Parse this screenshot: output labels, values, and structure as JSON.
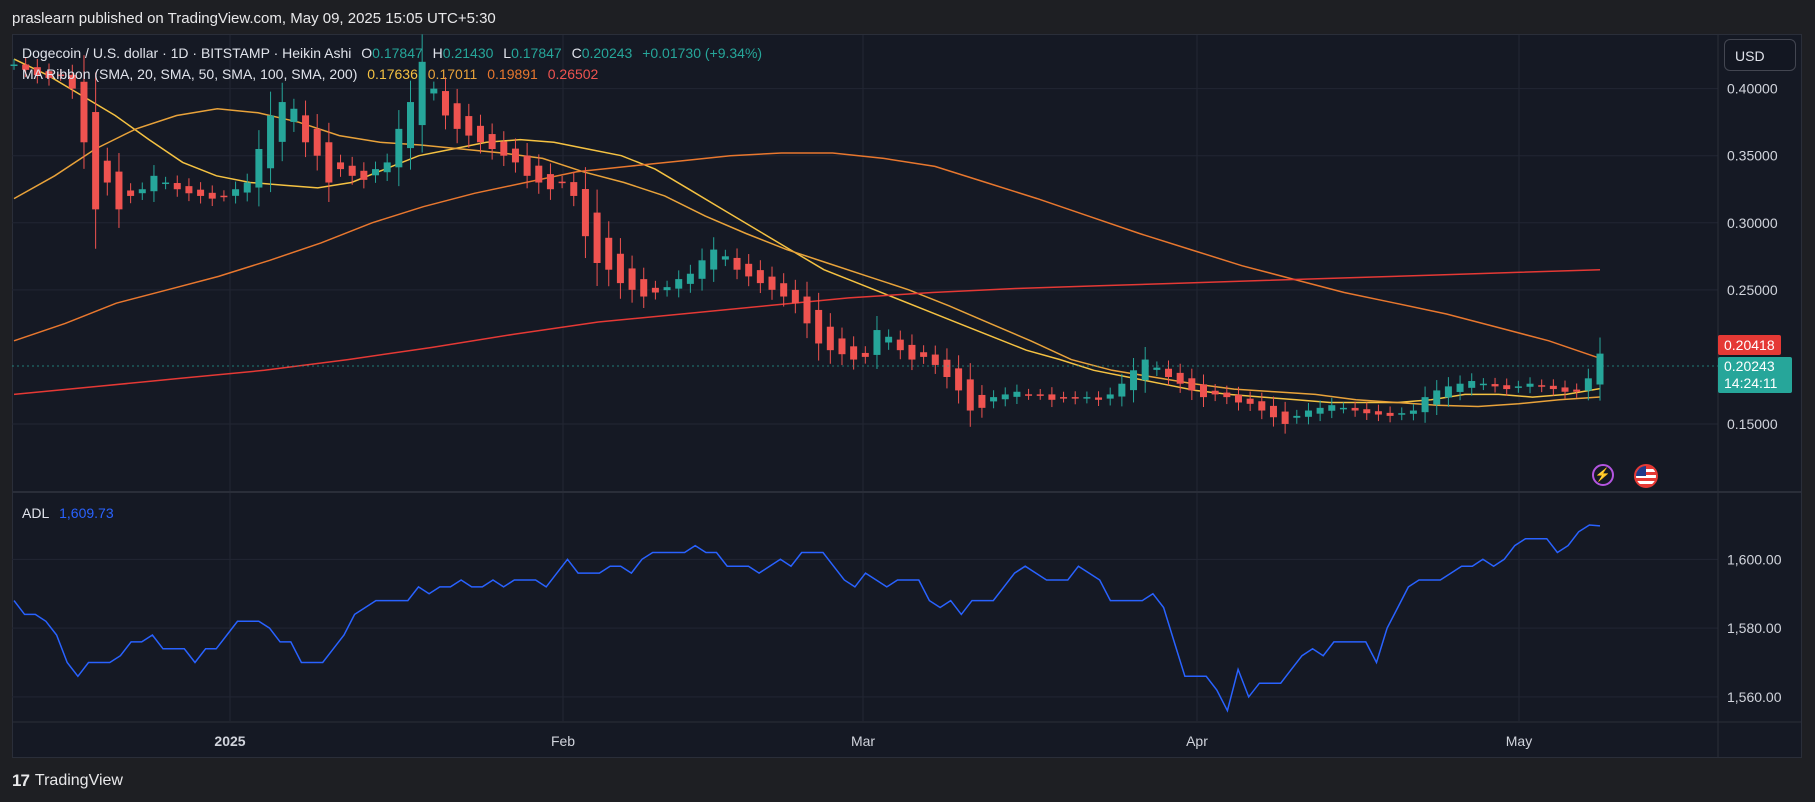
{
  "header": {
    "published": "praslearn published on TradingView.com, May 09, 2025 15:05 UTC+5:30"
  },
  "symbol": {
    "name": "Dogecoin / U.S. dollar · 1D · BITSTAMP · Heikin Ashi",
    "o_label": "O",
    "o": "0.17847",
    "h_label": "H",
    "h": "0.21430",
    "l_label": "L",
    "l": "0.17847",
    "c_label": "C",
    "c": "0.20243",
    "change": "+0.01730 (+9.34%)"
  },
  "ma_ribbon": {
    "label": "MA Ribbon (SMA, 20, SMA, 50, SMA, 100, SMA, 200)",
    "v20": "0.17636",
    "v50": "0.17011",
    "v100": "0.19891",
    "v200": "0.26502"
  },
  "currency_button": "USD",
  "price_badges": {
    "upper": "0.20418",
    "last": "0.20243",
    "countdown": "14:24:11"
  },
  "adl": {
    "label": "ADL",
    "value": "1,609.73"
  },
  "footer": {
    "brand": "TradingView",
    "logo_text": "17"
  },
  "colors": {
    "up": "#26a69a",
    "down": "#ef5350",
    "sma20": "#f5c242",
    "sma50": "#e8a23a",
    "sma100": "#e8772e",
    "sma200": "#e53935",
    "adl": "#2962ff",
    "bg": "#151924",
    "grid": "#222633"
  },
  "chart_data": [
    {
      "type": "line",
      "title": "Dogecoin / U.S. dollar · 1D · BITSTAMP · Heikin Ashi",
      "x_ticks": [
        "2025",
        "Feb",
        "Mar",
        "Apr",
        "May"
      ],
      "y_ticks": [
        "0.40000",
        "0.35000",
        "0.30000",
        "0.25000",
        "0.15000"
      ],
      "ylim": [
        0.1,
        0.44
      ],
      "candle_series": {
        "name": "Heikin Ashi",
        "close": [
          0.418,
          0.414,
          0.41,
          0.408,
          0.41,
          0.4,
          0.36,
          0.31,
          0.33,
          0.31,
          0.32,
          0.325,
          0.335,
          0.33,
          0.325,
          0.322,
          0.32,
          0.318,
          0.32,
          0.325,
          0.33,
          0.355,
          0.38,
          0.39,
          0.385,
          0.36,
          0.35,
          0.33,
          0.34,
          0.335,
          0.332,
          0.34,
          0.345,
          0.37,
          0.39,
          0.42,
          0.4,
          0.38,
          0.37,
          0.365,
          0.36,
          0.355,
          0.35,
          0.345,
          0.335,
          0.33,
          0.325,
          0.33,
          0.32,
          0.29,
          0.27,
          0.265,
          0.255,
          0.25,
          0.245,
          0.248,
          0.252,
          0.258,
          0.262,
          0.272,
          0.28,
          0.275,
          0.265,
          0.26,
          0.255,
          0.25,
          0.245,
          0.24,
          0.225,
          0.21,
          0.205,
          0.202,
          0.198,
          0.2,
          0.22,
          0.215,
          0.205,
          0.198,
          0.2,
          0.194,
          0.185,
          0.175,
          0.16,
          0.162,
          0.17,
          0.172,
          0.174,
          0.172,
          0.172,
          0.168,
          0.17,
          0.169,
          0.17,
          0.168,
          0.172,
          0.18,
          0.19,
          0.198,
          0.192,
          0.185,
          0.18,
          0.175,
          0.17,
          0.172,
          0.17,
          0.166,
          0.165,
          0.16,
          0.155,
          0.15,
          0.156,
          0.16,
          0.162,
          0.164,
          0.162,
          0.16,
          0.158,
          0.157,
          0.156,
          0.158,
          0.16,
          0.17,
          0.175,
          0.178,
          0.18,
          0.182,
          0.18,
          0.178,
          0.176,
          0.178,
          0.18,
          0.178,
          0.176,
          0.174,
          0.174,
          0.184,
          0.20243
        ]
      },
      "series": [
        {
          "name": "SMA 20",
          "values": [
            0.422,
            0.41,
            0.395,
            0.38,
            0.362,
            0.345,
            0.335,
            0.33,
            0.328,
            0.326,
            0.33,
            0.34,
            0.35,
            0.355,
            0.36,
            0.362,
            0.36,
            0.355,
            0.35,
            0.34,
            0.325,
            0.31,
            0.295,
            0.28,
            0.265,
            0.255,
            0.245,
            0.235,
            0.225,
            0.215,
            0.205,
            0.198,
            0.19,
            0.185,
            0.18,
            0.175,
            0.172,
            0.17,
            0.168,
            0.166,
            0.166,
            0.166,
            0.168,
            0.172,
            0.172,
            0.17,
            0.172,
            0.17636
          ]
        },
        {
          "name": "SMA 50",
          "values": [
            0.318,
            0.335,
            0.355,
            0.37,
            0.38,
            0.385,
            0.382,
            0.375,
            0.365,
            0.36,
            0.358,
            0.355,
            0.352,
            0.348,
            0.338,
            0.33,
            0.32,
            0.305,
            0.292,
            0.28,
            0.27,
            0.26,
            0.25,
            0.238,
            0.225,
            0.212,
            0.198,
            0.19,
            0.185,
            0.18,
            0.176,
            0.174,
            0.172,
            0.168,
            0.166,
            0.164,
            0.163,
            0.165,
            0.168,
            0.17011
          ]
        },
        {
          "name": "SMA 100",
          "values": [
            0.212,
            0.225,
            0.24,
            0.25,
            0.26,
            0.272,
            0.285,
            0.3,
            0.312,
            0.322,
            0.33,
            0.338,
            0.342,
            0.346,
            0.35,
            0.352,
            0.352,
            0.348,
            0.342,
            0.33,
            0.318,
            0.305,
            0.292,
            0.28,
            0.268,
            0.258,
            0.248,
            0.24,
            0.232,
            0.222,
            0.212,
            0.19891
          ]
        },
        {
          "name": "SMA 200",
          "values": [
            0.172,
            0.178,
            0.184,
            0.19,
            0.198,
            0.207,
            0.217,
            0.226,
            0.232,
            0.238,
            0.244,
            0.248,
            0.251,
            0.253,
            0.255,
            0.257,
            0.259,
            0.261,
            0.263,
            0.26502
          ]
        }
      ]
    },
    {
      "type": "line",
      "title": "ADL",
      "x_ticks": [
        "2025",
        "Feb",
        "Mar",
        "Apr",
        "May"
      ],
      "y_ticks": [
        "1,600.00",
        "1,580.00",
        "1,560.00"
      ],
      "ylim": [
        1553,
        1619
      ],
      "series": [
        {
          "name": "ADL",
          "values": [
            1588,
            1584,
            1584,
            1582,
            1578,
            1570,
            1566,
            1570,
            1570,
            1570,
            1572,
            1576,
            1576,
            1578,
            1574,
            1574,
            1574,
            1570,
            1574,
            1574,
            1578,
            1582,
            1582,
            1582,
            1580,
            1576,
            1576,
            1570,
            1570,
            1570,
            1574,
            1578,
            1584,
            1586,
            1588,
            1588,
            1588,
            1588,
            1592,
            1590,
            1592,
            1592,
            1594,
            1592,
            1592,
            1594,
            1592,
            1594,
            1594,
            1594,
            1592,
            1596,
            1600,
            1596,
            1596,
            1596,
            1598,
            1598,
            1596,
            1600,
            1602,
            1602,
            1602,
            1602,
            1604,
            1602,
            1602,
            1598,
            1598,
            1598,
            1596,
            1598,
            1600,
            1598,
            1602,
            1602,
            1602,
            1598,
            1594,
            1592,
            1596,
            1594,
            1592,
            1594,
            1594,
            1594,
            1588,
            1586,
            1588,
            1584,
            1588,
            1588,
            1588,
            1592,
            1596,
            1598,
            1596,
            1594,
            1594,
            1594,
            1598,
            1596,
            1594,
            1588,
            1588,
            1588,
            1588,
            1590,
            1586,
            1576,
            1566,
            1566,
            1566,
            1562,
            1556,
            1568,
            1560,
            1564,
            1564,
            1564,
            1568,
            1572,
            1574,
            1572,
            1576,
            1576,
            1576,
            1576,
            1570,
            1580,
            1586,
            1592,
            1594,
            1594,
            1594,
            1596,
            1598,
            1598,
            1600,
            1598,
            1600,
            1604,
            1606,
            1606,
            1606,
            1602,
            1604,
            1608,
            1610,
            1609.73
          ]
        }
      ]
    }
  ]
}
